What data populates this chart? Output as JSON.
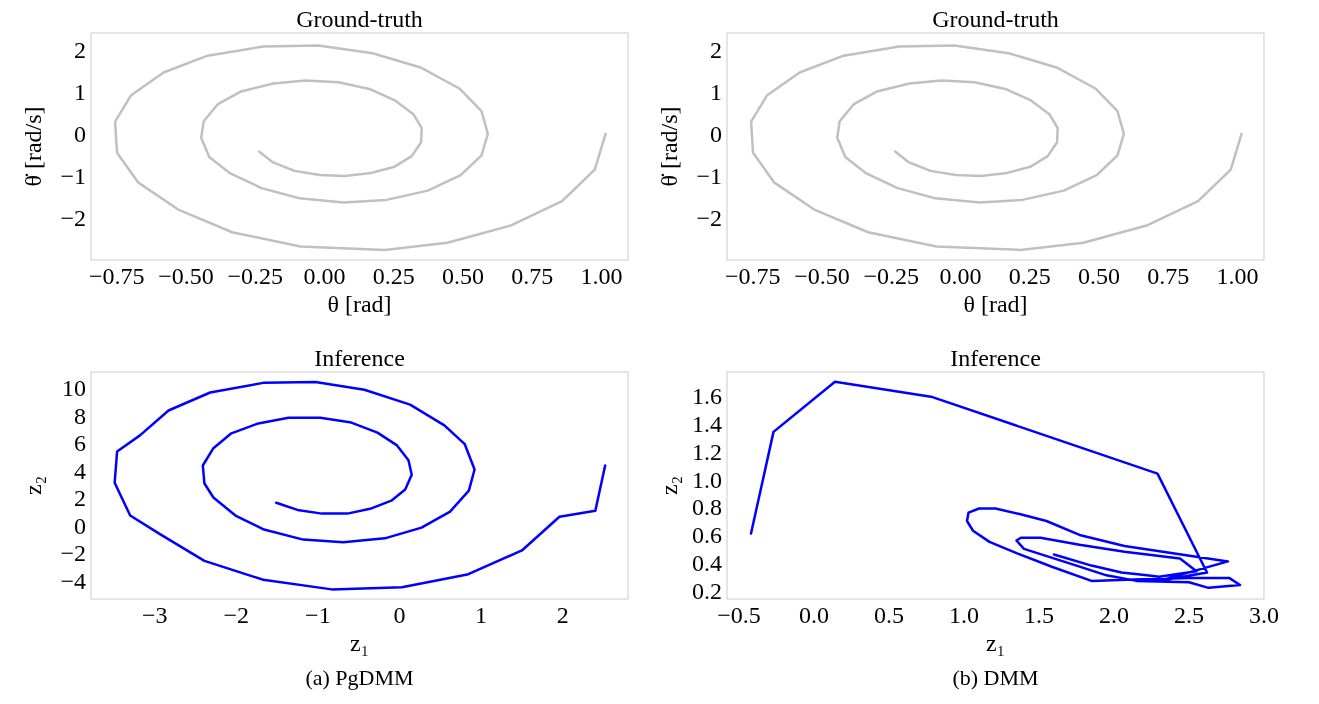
{
  "chart_data": [
    {
      "type": "line",
      "title": "Ground-truth",
      "xlabel": "θ [rad]",
      "ylabel": "θ̇ [rad/s]",
      "xlim": [
        -0.843,
        1.096
      ],
      "ylim": [
        -3.0,
        2.4
      ],
      "xticks": [
        {
          "value": -0.75,
          "label": "−0.75"
        },
        {
          "value": -0.5,
          "label": "−0.50"
        },
        {
          "value": -0.25,
          "label": "−0.25"
        },
        {
          "value": 0,
          "label": "0.00"
        },
        {
          "value": 0.25,
          "label": "0.25"
        },
        {
          "value": 0.5,
          "label": "0.50"
        },
        {
          "value": 0.75,
          "label": "0.75"
        },
        {
          "value": 1,
          "label": "1.00"
        }
      ],
      "yticks": [
        {
          "value": -2,
          "label": "−2"
        },
        {
          "value": -1,
          "label": "−1"
        },
        0,
        1,
        2
      ],
      "grid": false,
      "marker": "none",
      "line_style": "solid",
      "series": [
        {
          "color": "#c0c0c0",
          "x": [
            1.015,
            0.976,
            0.858,
            0.672,
            0.444,
            0.217,
            -0.087,
            -0.333,
            -0.528,
            -0.672,
            -0.749,
            -0.756,
            -0.698,
            -0.581,
            -0.422,
            -0.221,
            -0.022,
            0.174,
            0.347,
            0.487,
            0.567,
            0.59,
            0.567,
            0.492,
            0.373,
            0.224,
            0.069,
            -0.091,
            -0.227,
            -0.34,
            -0.416,
            -0.445,
            -0.436,
            -0.386,
            -0.301,
            -0.185,
            -0.069,
            0.051,
            0.166,
            0.256,
            0.321,
            0.351,
            0.349,
            0.315,
            0.253,
            0.168,
            0.072,
            -0.017,
            -0.108,
            -0.188,
            -0.236
          ],
          "values": [
            0.0,
            -0.85,
            -1.6,
            -2.18,
            -2.59,
            -2.76,
            -2.68,
            -2.34,
            -1.8,
            -1.16,
            -0.45,
            0.29,
            0.92,
            1.46,
            1.86,
            2.08,
            2.1,
            1.92,
            1.58,
            1.08,
            0.54,
            0.0,
            -0.51,
            -0.98,
            -1.35,
            -1.57,
            -1.63,
            -1.53,
            -1.29,
            -0.94,
            -0.55,
            -0.09,
            0.3,
            0.7,
            1.01,
            1.2,
            1.27,
            1.23,
            1.06,
            0.79,
            0.47,
            0.14,
            -0.2,
            -0.53,
            -0.78,
            -0.93,
            -1.0,
            -0.98,
            -0.88,
            -0.67,
            -0.42
          ]
        }
      ]
    },
    {
      "type": "line",
      "title": "Ground-truth",
      "xlabel": "θ [rad]",
      "ylabel": "θ̇ [rad/s]",
      "xlim": [
        -0.843,
        1.096
      ],
      "ylim": [
        -3.0,
        2.4
      ],
      "xticks": [
        {
          "value": -0.75,
          "label": "−0.75"
        },
        {
          "value": -0.5,
          "label": "−0.50"
        },
        {
          "value": -0.25,
          "label": "−0.25"
        },
        {
          "value": 0,
          "label": "0.00"
        },
        {
          "value": 0.25,
          "label": "0.25"
        },
        {
          "value": 0.5,
          "label": "0.50"
        },
        {
          "value": 0.75,
          "label": "0.75"
        },
        {
          "value": 1,
          "label": "1.00"
        }
      ],
      "yticks": [
        {
          "value": -2,
          "label": "−2"
        },
        {
          "value": -1,
          "label": "−1"
        },
        0,
        1,
        2
      ],
      "grid": false,
      "marker": "none",
      "line_style": "solid",
      "series": [
        {
          "color": "#c0c0c0",
          "x": [
            1.015,
            0.976,
            0.858,
            0.672,
            0.444,
            0.217,
            -0.087,
            -0.333,
            -0.528,
            -0.672,
            -0.749,
            -0.756,
            -0.698,
            -0.581,
            -0.422,
            -0.221,
            -0.022,
            0.174,
            0.347,
            0.487,
            0.567,
            0.59,
            0.567,
            0.492,
            0.373,
            0.224,
            0.069,
            -0.091,
            -0.227,
            -0.34,
            -0.416,
            -0.445,
            -0.436,
            -0.386,
            -0.301,
            -0.185,
            -0.069,
            0.051,
            0.166,
            0.256,
            0.321,
            0.351,
            0.349,
            0.315,
            0.253,
            0.168,
            0.072,
            -0.017,
            -0.108,
            -0.188,
            -0.236
          ],
          "values": [
            0.0,
            -0.85,
            -1.6,
            -2.18,
            -2.59,
            -2.76,
            -2.68,
            -2.34,
            -1.8,
            -1.16,
            -0.45,
            0.29,
            0.92,
            1.46,
            1.86,
            2.08,
            2.1,
            1.92,
            1.58,
            1.08,
            0.54,
            0.0,
            -0.51,
            -0.98,
            -1.35,
            -1.57,
            -1.63,
            -1.53,
            -1.29,
            -0.94,
            -0.55,
            -0.09,
            0.3,
            0.7,
            1.01,
            1.2,
            1.27,
            1.23,
            1.06,
            0.79,
            0.47,
            0.14,
            -0.2,
            -0.53,
            -0.78,
            -0.93,
            -1.0,
            -0.98,
            -0.88,
            -0.67,
            -0.42
          ]
        }
      ]
    },
    {
      "type": "line",
      "title": "Inference",
      "xlabel": "z₁",
      "ylabel": "z₂",
      "xlim": [
        -3.78,
        2.8
      ],
      "ylim": [
        -5.34,
        11.17
      ],
      "xticks": [
        {
          "value": -3,
          "label": "−3"
        },
        {
          "value": -2,
          "label": "−2"
        },
        {
          "value": -1,
          "label": "−1"
        },
        0,
        1,
        2
      ],
      "yticks": [
        {
          "value": -4,
          "label": "−4"
        },
        {
          "value": -2,
          "label": "−2"
        },
        0,
        2,
        4,
        6,
        8,
        10
      ],
      "grid": false,
      "marker": "none",
      "line_style": "solid",
      "annotations": [
        "(a) PgDMM"
      ],
      "series": [
        {
          "color": "#0000ff",
          "x": [
            2.52,
            2.4,
            1.96,
            1.5,
            0.83,
            0.03,
            -0.83,
            -1.67,
            -2.39,
            -2.93,
            -3.3,
            -3.49,
            -3.46,
            -3.18,
            -2.83,
            -2.32,
            -1.67,
            -1.03,
            -0.43,
            0.13,
            0.55,
            0.8,
            0.92,
            0.85,
            0.62,
            0.27,
            -0.18,
            -0.69,
            -1.18,
            -1.66,
            -2.01,
            -2.28,
            -2.39,
            -2.41,
            -2.28,
            -2.06,
            -1.73,
            -1.36,
            -0.97,
            -0.59,
            -0.27,
            -0.03,
            0.11,
            0.15,
            0.07,
            -0.1,
            -0.36,
            -0.64,
            -0.95,
            -1.25,
            -1.51
          ],
          "values": [
            4.37,
            1.08,
            0.64,
            -1.81,
            -3.56,
            -4.49,
            -4.64,
            -3.94,
            -2.57,
            -0.64,
            0.73,
            3.12,
            5.39,
            6.56,
            8.37,
            9.68,
            10.38,
            10.44,
            9.88,
            8.8,
            7.29,
            5.92,
            4.08,
            2.54,
            1.02,
            -0.15,
            -0.93,
            -1.22,
            -1.02,
            -0.29,
            0.73,
            2.04,
            3.06,
            4.37,
            5.63,
            6.71,
            7.43,
            7.84,
            7.84,
            7.49,
            6.76,
            5.83,
            4.75,
            3.7,
            2.62,
            1.81,
            1.22,
            0.87,
            0.87,
            1.14,
            1.66
          ]
        }
      ]
    },
    {
      "type": "line",
      "title": "Inference",
      "xlabel": "z₁",
      "ylabel": "z₂",
      "xlim": [
        -0.58,
        3.0
      ],
      "ylim": [
        0.14,
        1.77
      ],
      "xticks": [
        {
          "value": -0.5,
          "label": "−0.5"
        },
        {
          "value": 0,
          "label": "0.0"
        },
        0.5,
        {
          "value": 1,
          "label": "1.0"
        },
        1.5,
        {
          "value": 2,
          "label": "2.0"
        },
        2.5,
        {
          "value": 3,
          "label": "3.0"
        }
      ],
      "yticks": [
        0.2,
        0.4,
        0.6,
        0.8,
        {
          "value": 1,
          "label": "1.0"
        },
        1.2,
        1.4,
        1.6
      ],
      "grid": false,
      "marker": "none",
      "line_style": "solid",
      "annotations": [
        "(b) DMM"
      ],
      "series": [
        {
          "color": "#0000ff",
          "x": [
            -0.42,
            -0.27,
            0.14,
            0.79,
            2.29,
            2.62,
            2.3,
            2.76,
            2.07,
            1.77,
            1.55,
            1.37,
            1.21,
            1.1,
            1.03,
            1.02,
            1.06,
            1.17,
            1.35,
            1.59,
            1.85,
            2.13,
            2.5,
            2.77,
            2.84,
            2.63,
            2.5,
            2.15,
            1.95,
            1.75,
            1.4,
            1.35,
            1.38,
            1.51,
            1.77,
            2.07,
            2.44,
            2.55,
            2.3,
            2.22,
            2.05,
            1.85,
            1.6
          ],
          "values": [
            0.61,
            1.34,
            1.7,
            1.59,
            1.04,
            0.33,
            0.27,
            0.41,
            0.52,
            0.6,
            0.7,
            0.75,
            0.79,
            0.79,
            0.76,
            0.7,
            0.63,
            0.55,
            0.47,
            0.37,
            0.27,
            0.28,
            0.29,
            0.29,
            0.24,
            0.22,
            0.26,
            0.27,
            0.31,
            0.38,
            0.5,
            0.56,
            0.58,
            0.58,
            0.53,
            0.48,
            0.43,
            0.34,
            0.3,
            0.31,
            0.33,
            0.38,
            0.46
          ]
        }
      ]
    }
  ]
}
